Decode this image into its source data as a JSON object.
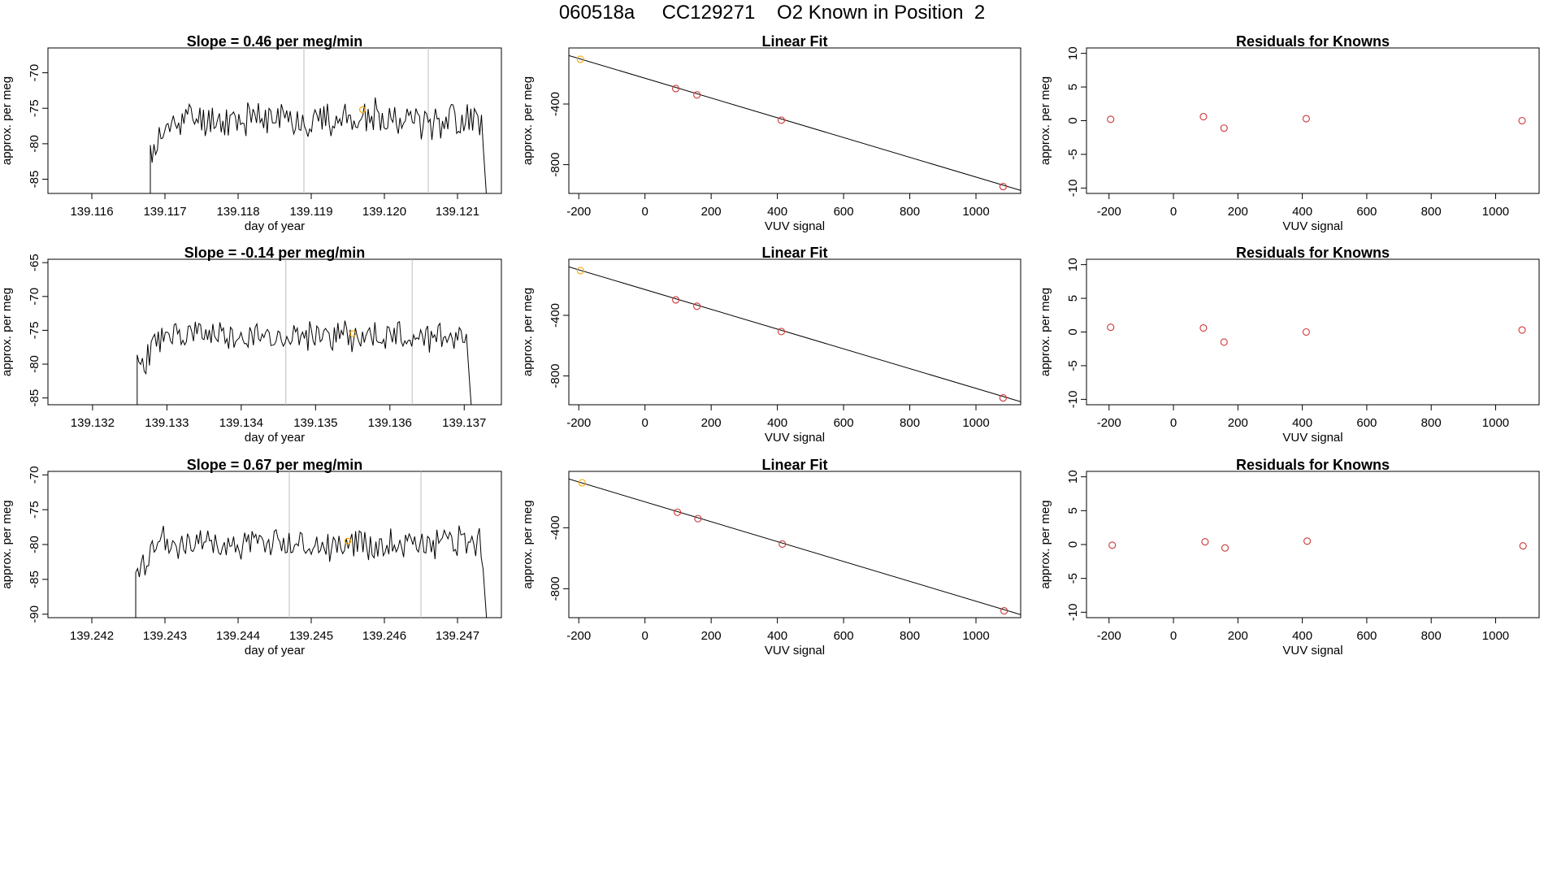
{
  "figure": {
    "title": "060518a     CC129271    O2 Known in Position  2"
  },
  "colors": {
    "trace": "#000000",
    "frame": "#000000",
    "knowns": "#cd3333",
    "sample_point": "#ffa500",
    "marker_lines": "#bebebe",
    "fit_line": "#000000"
  },
  "chart_data": [
    {
      "type": "line",
      "row": 1,
      "title": "Slope =  0.46  per meg/min",
      "xlabel": "day of year",
      "ylabel": "approx. per meg",
      "xlim": [
        139.1154,
        139.1216
      ],
      "ylim": [
        -87,
        -66.5
      ],
      "xticks": [
        139.116,
        139.117,
        139.118,
        139.119,
        139.12,
        139.121
      ],
      "xtick_labels": [
        "139.116",
        "139.117",
        "139.118",
        "139.119",
        "139.120",
        "139.121"
      ],
      "yticks": [
        -85,
        -80,
        -75,
        -70
      ],
      "vlines": [
        139.1189,
        139.1206
      ],
      "highlight_point": {
        "x": 139.1197,
        "y": -75.2
      },
      "trace": {
        "x_start": 139.1168,
        "x_end": 139.1214,
        "start_y": -88,
        "mean_y": -76.5,
        "amplitude": 2.2,
        "seed": 11,
        "end_y": -88
      },
      "grid": false
    },
    {
      "type": "scatter",
      "row": 1,
      "title": "Linear Fit",
      "xlabel": "VUV signal",
      "ylabel": "approx. per meg",
      "xlim": [
        -230,
        1135
      ],
      "ylim": [
        -990,
        -30
      ],
      "xticks": [
        -200,
        0,
        200,
        400,
        600,
        800,
        1000
      ],
      "yticks": [
        -800,
        -400
      ],
      "points": [
        {
          "x": -195,
          "y": -105,
          "color": "sample_point"
        },
        {
          "x": 93,
          "y": -298,
          "color": "knowns"
        },
        {
          "x": 157,
          "y": -340,
          "color": "knowns"
        },
        {
          "x": 412,
          "y": -507,
          "color": "knowns"
        },
        {
          "x": 1082,
          "y": -945,
          "color": "knowns"
        }
      ],
      "fit_line": {
        "x": [
          -230,
          1135
        ],
        "y": [
          -80,
          -970
        ]
      },
      "grid": false
    },
    {
      "type": "scatter",
      "row": 1,
      "title": "Residuals for Knowns",
      "xlabel": "VUV signal",
      "ylabel": "approx. per meg",
      "xlim": [
        -270,
        1135
      ],
      "ylim": [
        -10.8,
        10.8
      ],
      "xticks": [
        -200,
        0,
        200,
        400,
        600,
        800,
        1000
      ],
      "yticks": [
        -10,
        -5,
        0,
        5,
        10
      ],
      "points": [
        {
          "x": -195,
          "y": 0.2,
          "color": "knowns"
        },
        {
          "x": 93,
          "y": 0.6,
          "color": "knowns"
        },
        {
          "x": 157,
          "y": -1.1,
          "color": "knowns"
        },
        {
          "x": 412,
          "y": 0.3,
          "color": "knowns"
        },
        {
          "x": 1082,
          "y": 0.0,
          "color": "knowns"
        }
      ],
      "grid": false
    },
    {
      "type": "line",
      "row": 2,
      "title": "Slope =  -0.14  per meg/min",
      "xlabel": "day of year",
      "ylabel": "approx. per meg",
      "xlim": [
        139.1314,
        139.1375
      ],
      "ylim": [
        -86,
        -64.5
      ],
      "xticks": [
        139.132,
        139.133,
        139.134,
        139.135,
        139.136,
        139.137
      ],
      "xtick_labels": [
        "139.132",
        "139.133",
        "139.134",
        "139.135",
        "139.136",
        "139.137"
      ],
      "yticks": [
        -85,
        -80,
        -75,
        -70,
        -65
      ],
      "vlines": [
        139.1346,
        139.1363
      ],
      "highlight_point": {
        "x": 139.1355,
        "y": -75.5
      },
      "trace": {
        "x_start": 139.1326,
        "x_end": 139.1371,
        "start_y": -87,
        "mean_y": -75.8,
        "amplitude": 2.0,
        "seed": 23,
        "end_y": -87
      },
      "grid": false
    },
    {
      "type": "scatter",
      "row": 2,
      "title": "Linear Fit",
      "xlabel": "VUV signal",
      "ylabel": "approx. per meg",
      "xlim": [
        -230,
        1135
      ],
      "ylim": [
        -990,
        -30
      ],
      "xticks": [
        -200,
        0,
        200,
        400,
        600,
        800,
        1000
      ],
      "yticks": [
        -800,
        -400
      ],
      "points": [
        {
          "x": -195,
          "y": -105,
          "color": "sample_point"
        },
        {
          "x": 93,
          "y": -298,
          "color": "knowns"
        },
        {
          "x": 157,
          "y": -340,
          "color": "knowns"
        },
        {
          "x": 412,
          "y": -507,
          "color": "knowns"
        },
        {
          "x": 1082,
          "y": -945,
          "color": "knowns"
        }
      ],
      "fit_line": {
        "x": [
          -230,
          1135
        ],
        "y": [
          -80,
          -970
        ]
      },
      "grid": false
    },
    {
      "type": "scatter",
      "row": 2,
      "title": "Residuals for Knowns",
      "xlabel": "VUV signal",
      "ylabel": "approx. per meg",
      "xlim": [
        -270,
        1135
      ],
      "ylim": [
        -10.8,
        10.8
      ],
      "xticks": [
        -200,
        0,
        200,
        400,
        600,
        800,
        1000
      ],
      "yticks": [
        -10,
        -5,
        0,
        5,
        10
      ],
      "points": [
        {
          "x": -195,
          "y": 0.7,
          "color": "knowns"
        },
        {
          "x": 93,
          "y": 0.6,
          "color": "knowns"
        },
        {
          "x": 157,
          "y": -1.5,
          "color": "knowns"
        },
        {
          "x": 412,
          "y": 0.0,
          "color": "knowns"
        },
        {
          "x": 1082,
          "y": 0.3,
          "color": "knowns"
        }
      ],
      "grid": false
    },
    {
      "type": "line",
      "row": 3,
      "title": "Slope =  0.67  per meg/min",
      "xlabel": "day of year",
      "ylabel": "approx. per meg",
      "xlim": [
        139.2414,
        139.2476
      ],
      "ylim": [
        -90.5,
        -69.5
      ],
      "xticks": [
        139.242,
        139.243,
        139.244,
        139.245,
        139.246,
        139.247
      ],
      "xtick_labels": [
        "139.242",
        "139.243",
        "139.244",
        "139.245",
        "139.246",
        "139.247"
      ],
      "yticks": [
        -90,
        -85,
        -80,
        -75,
        -70
      ],
      "vlines": [
        139.2447,
        139.2465
      ],
      "highlight_point": {
        "x": 139.2455,
        "y": -79.5
      },
      "trace": {
        "x_start": 139.2426,
        "x_end": 139.2474,
        "start_y": -91,
        "mean_y": -79.8,
        "amplitude": 2.1,
        "seed": 37,
        "end_y": -91
      },
      "grid": false
    },
    {
      "type": "scatter",
      "row": 3,
      "title": "Linear Fit",
      "xlabel": "VUV signal",
      "ylabel": "approx. per meg",
      "xlim": [
        -230,
        1135
      ],
      "ylim": [
        -990,
        -30
      ],
      "xticks": [
        -200,
        0,
        200,
        400,
        600,
        800,
        1000
      ],
      "yticks": [
        -800,
        -400
      ],
      "points": [
        {
          "x": -190,
          "y": -105,
          "color": "sample_point"
        },
        {
          "x": 98,
          "y": -298,
          "color": "knowns"
        },
        {
          "x": 160,
          "y": -340,
          "color": "knowns"
        },
        {
          "x": 415,
          "y": -507,
          "color": "knowns"
        },
        {
          "x": 1085,
          "y": -945,
          "color": "knowns"
        }
      ],
      "fit_line": {
        "x": [
          -230,
          1135
        ],
        "y": [
          -80,
          -970
        ]
      },
      "grid": false
    },
    {
      "type": "scatter",
      "row": 3,
      "title": "Residuals for Knowns",
      "xlabel": "VUV signal",
      "ylabel": "approx. per meg",
      "xlim": [
        -270,
        1135
      ],
      "ylim": [
        -10.8,
        10.8
      ],
      "xticks": [
        -200,
        0,
        200,
        400,
        600,
        800,
        1000
      ],
      "yticks": [
        -10,
        -5,
        0,
        5,
        10
      ],
      "points": [
        {
          "x": -190,
          "y": -0.1,
          "color": "knowns"
        },
        {
          "x": 98,
          "y": 0.4,
          "color": "knowns"
        },
        {
          "x": 160,
          "y": -0.5,
          "color": "knowns"
        },
        {
          "x": 415,
          "y": 0.5,
          "color": "knowns"
        },
        {
          "x": 1085,
          "y": -0.2,
          "color": "knowns"
        }
      ],
      "grid": false
    }
  ]
}
